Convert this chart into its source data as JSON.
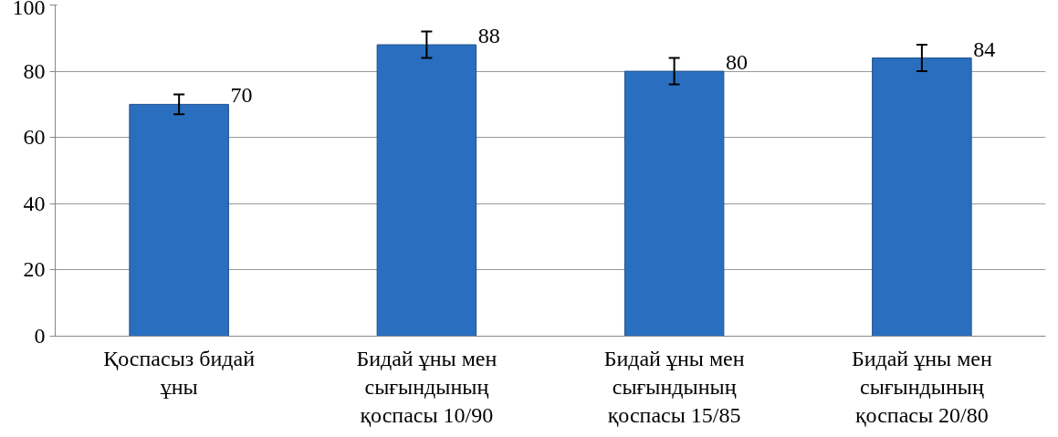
{
  "chart_data": {
    "type": "bar",
    "categories": [
      "Қоспасыз бидай ұны",
      "Бидай ұны мен сығындының қоспасы 10/90",
      "Бидай ұны мен сығындының қоспасы 15/85",
      "Бидай ұны мен сығындының қоспасы 20/80"
    ],
    "values": [
      70,
      88,
      80,
      84
    ],
    "errors": [
      3,
      4,
      4,
      4
    ],
    "color": "#2a6fbf",
    "data_labels": true,
    "ylim": [
      0,
      100
    ],
    "yticks": [
      0,
      20,
      40,
      60,
      80,
      100
    ],
    "grid": "y"
  }
}
